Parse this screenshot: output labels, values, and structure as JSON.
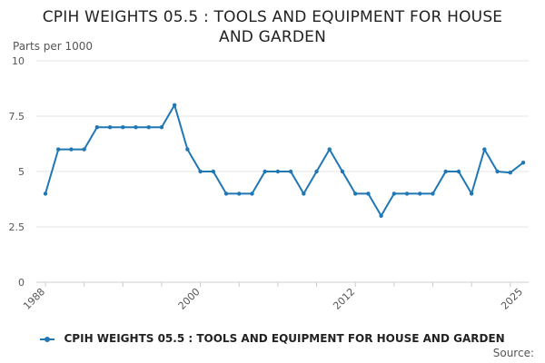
{
  "chart_data": {
    "type": "line",
    "title": "CPIH WEIGHTS 05.5 : TOOLS AND EQUIPMENT FOR HOUSE AND GARDEN",
    "title_lines": [
      "CPIH WEIGHTS 05.5 : TOOLS AND EQUIPMENT FOR HOUSE",
      "AND GARDEN"
    ],
    "ylabel": "Parts per 1000",
    "xlabel": "",
    "ylim": [
      0,
      10
    ],
    "y_ticks": [
      "0",
      "2.5",
      "5",
      "7.5",
      "10"
    ],
    "xlim": [
      1988,
      2025
    ],
    "x_tick_labels": [
      "1988",
      "2000",
      "2012",
      "2025"
    ],
    "grid": true,
    "legend_position": "bottom",
    "source_label": "Source:",
    "colors": {
      "series": "#1f77b4",
      "grid": "#e6e6e6",
      "axis": "#cccccc",
      "text": "#555555"
    },
    "x": [
      1988,
      1989,
      1990,
      1991,
      1992,
      1993,
      1994,
      1995,
      1996,
      1997,
      1998,
      1999,
      2000,
      2001,
      2002,
      2003,
      2004,
      2005,
      2006,
      2007,
      2008,
      2009,
      2010,
      2011,
      2012,
      2013,
      2014,
      2015,
      2016,
      2017,
      2018,
      2019,
      2020,
      2021,
      2022,
      2023,
      2024,
      2025
    ],
    "series": [
      {
        "name": "CPIH WEIGHTS 05.5 : TOOLS AND EQUIPMENT FOR HOUSE AND GARDEN",
        "values": [
          4,
          6,
          6,
          6,
          7,
          7,
          7,
          7,
          7,
          7,
          8,
          6,
          5,
          5,
          4,
          4,
          4,
          5,
          5,
          5,
          4,
          5,
          6,
          5,
          4,
          4,
          3,
          4,
          4,
          4,
          4,
          5,
          5,
          4,
          6,
          5,
          4.95,
          5.4
        ]
      }
    ]
  }
}
